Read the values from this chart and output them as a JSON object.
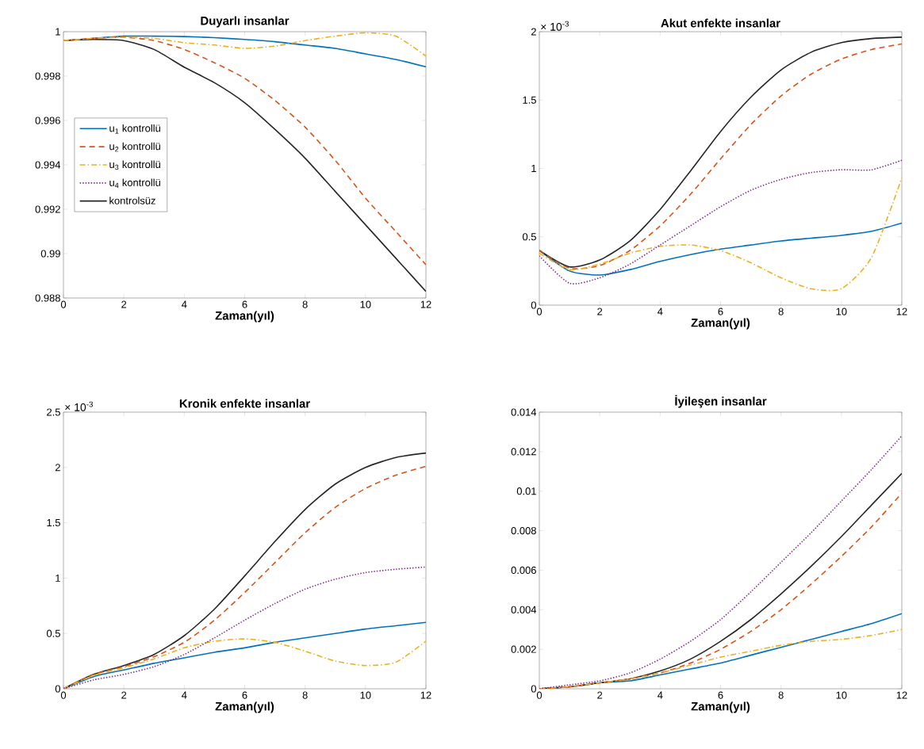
{
  "chart_data": [
    {
      "type": "line",
      "title": "Duyarlı insanlar",
      "xlabel": "Zaman(yıl)",
      "xlim": [
        0,
        12
      ],
      "xticks": [
        0,
        2,
        4,
        6,
        8,
        10,
        12
      ],
      "ylim": [
        0.988,
        1
      ],
      "yticks": [
        0.988,
        0.99,
        0.992,
        0.994,
        0.996,
        0.998,
        1
      ],
      "legend": "left",
      "x": [
        0,
        1,
        2,
        3,
        4,
        5,
        6,
        7,
        8,
        9,
        10,
        11,
        12
      ],
      "series": [
        {
          "name": "u$_{1}$ kontrollü",
          "color": "#0072bd",
          "line_style": "solid",
          "values": [
            0.9996,
            0.9997,
            0.9998,
            0.9998,
            0.99978,
            0.99973,
            0.99965,
            0.99955,
            0.9994,
            0.99925,
            0.999,
            0.99875,
            0.99842
          ]
        },
        {
          "name": "u$_{2}$ kontrollü",
          "color": "#d95319",
          "line_style": "dashed",
          "values": [
            0.9996,
            0.9997,
            0.99975,
            0.9996,
            0.9992,
            0.9986,
            0.9979,
            0.9969,
            0.9957,
            0.9942,
            0.9925,
            0.991,
            0.9895
          ]
        },
        {
          "name": "u$_{3}$ kontrollü",
          "color": "#edb120",
          "line_style": "dashdot",
          "values": [
            0.9996,
            0.9997,
            0.99975,
            0.9997,
            0.9995,
            0.9994,
            0.99925,
            0.99935,
            0.9996,
            0.9998,
            0.99995,
            0.9998,
            0.9989
          ]
        },
        {
          "name": "u$_{4}$ kontrollü",
          "color": "#7e2f8e",
          "line_style": "dotted",
          "values": [
            null,
            null,
            null,
            null,
            null,
            null,
            null,
            null,
            null,
            null,
            null,
            null,
            null
          ]
        },
        {
          "name": "kontrolsüz",
          "color": "#262626",
          "line_style": "solid",
          "values": [
            0.9996,
            0.99965,
            0.9996,
            0.9992,
            0.9984,
            0.9977,
            0.9968,
            0.9956,
            0.9943,
            0.9928,
            0.9913,
            0.9898,
            0.9883
          ]
        }
      ]
    },
    {
      "type": "line",
      "title": "Akut enfekte insanlar",
      "xlabel": "Zaman(yıl)",
      "xlim": [
        0,
        12
      ],
      "xticks": [
        0,
        2,
        4,
        6,
        8,
        10,
        12
      ],
      "ylim": [
        0,
        2
      ],
      "yticks": [
        0,
        0.5,
        1,
        1.5,
        2
      ],
      "annotations": [
        "× 10$^{-3}$"
      ],
      "x": [
        0,
        1,
        2,
        3,
        4,
        5,
        6,
        7,
        8,
        9,
        10,
        11,
        12
      ],
      "series": [
        {
          "color": "#0072bd",
          "line_style": "solid",
          "values": [
            0.4,
            0.25,
            0.22,
            0.26,
            0.32,
            0.37,
            0.41,
            0.44,
            0.47,
            0.49,
            0.51,
            0.54,
            0.6
          ]
        },
        {
          "color": "#d95319",
          "line_style": "dashed",
          "values": [
            0.4,
            0.27,
            0.29,
            0.4,
            0.58,
            0.81,
            1.07,
            1.32,
            1.53,
            1.69,
            1.8,
            1.87,
            1.91
          ]
        },
        {
          "color": "#edb120",
          "line_style": "dashdot",
          "values": [
            0.38,
            0.26,
            0.3,
            0.38,
            0.43,
            0.44,
            0.4,
            0.31,
            0.2,
            0.12,
            0.12,
            0.35,
            0.93
          ]
        },
        {
          "color": "#7e2f8e",
          "line_style": "dotted",
          "values": [
            0.36,
            0.16,
            0.2,
            0.3,
            0.44,
            0.58,
            0.72,
            0.84,
            0.92,
            0.97,
            0.99,
            0.99,
            1.06
          ]
        },
        {
          "color": "#262626",
          "line_style": "solid",
          "values": [
            0.4,
            0.28,
            0.33,
            0.47,
            0.7,
            0.98,
            1.27,
            1.52,
            1.72,
            1.85,
            1.92,
            1.95,
            1.96
          ]
        }
      ]
    },
    {
      "type": "line",
      "title": "Kronik enfekte insanlar",
      "xlabel": "Zaman(yıl)",
      "xlim": [
        0,
        12
      ],
      "xticks": [
        0,
        2,
        4,
        6,
        8,
        10,
        12
      ],
      "ylim": [
        0,
        2.5
      ],
      "yticks": [
        0,
        0.5,
        1,
        1.5,
        2,
        2.5
      ],
      "annotations": [
        "× 10$^{-3}$"
      ],
      "x": [
        0,
        1,
        2,
        3,
        4,
        5,
        6,
        7,
        8,
        9,
        10,
        11,
        12
      ],
      "series": [
        {
          "color": "#0072bd",
          "line_style": "solid",
          "values": [
            0,
            0.11,
            0.17,
            0.23,
            0.28,
            0.33,
            0.37,
            0.42,
            0.46,
            0.5,
            0.54,
            0.57,
            0.6
          ]
        },
        {
          "color": "#d95319",
          "line_style": "dashed",
          "values": [
            0,
            0.13,
            0.2,
            0.29,
            0.42,
            0.62,
            0.87,
            1.14,
            1.41,
            1.64,
            1.81,
            1.93,
            2.01
          ]
        },
        {
          "color": "#edb120",
          "line_style": "dashdot",
          "values": [
            0,
            0.12,
            0.19,
            0.27,
            0.37,
            0.43,
            0.45,
            0.42,
            0.34,
            0.25,
            0.21,
            0.24,
            0.43
          ]
        },
        {
          "color": "#7e2f8e",
          "line_style": "dotted",
          "values": [
            0,
            0.08,
            0.13,
            0.2,
            0.31,
            0.46,
            0.62,
            0.77,
            0.9,
            0.99,
            1.05,
            1.08,
            1.1
          ]
        },
        {
          "color": "#262626",
          "line_style": "solid",
          "values": [
            0,
            0.13,
            0.21,
            0.31,
            0.48,
            0.72,
            1.02,
            1.33,
            1.62,
            1.85,
            2.0,
            2.09,
            2.13
          ]
        }
      ]
    },
    {
      "type": "line",
      "title": "İyileşen insanlar",
      "xlabel": "Zaman(yıl)",
      "xlim": [
        0,
        12
      ],
      "xticks": [
        0,
        2,
        4,
        6,
        8,
        10,
        12
      ],
      "ylim": [
        0,
        0.014
      ],
      "yticks": [
        0,
        0.002,
        0.004,
        0.006,
        0.008,
        0.01,
        0.012,
        0.014
      ],
      "x": [
        0,
        1,
        2,
        3,
        4,
        5,
        6,
        7,
        8,
        9,
        10,
        11,
        12
      ],
      "series": [
        {
          "color": "#0072bd",
          "line_style": "solid",
          "values": [
            0,
            0.0001,
            0.0003,
            0.0004,
            0.0007,
            0.001,
            0.0013,
            0.0017,
            0.0021,
            0.0025,
            0.0029,
            0.0033,
            0.0038
          ]
        },
        {
          "color": "#d95319",
          "line_style": "dashed",
          "values": [
            0,
            0.0001,
            0.0003,
            0.0005,
            0.0008,
            0.0013,
            0.002,
            0.0029,
            0.004,
            0.0053,
            0.0067,
            0.0082,
            0.0099
          ]
        },
        {
          "color": "#edb120",
          "line_style": "dashdot",
          "values": [
            0,
            0.0001,
            0.0003,
            0.0005,
            0.0008,
            0.0012,
            0.0016,
            0.0019,
            0.0022,
            0.0024,
            0.0025,
            0.0027,
            0.003
          ]
        },
        {
          "color": "#7e2f8e",
          "line_style": "dotted",
          "values": [
            0,
            0.0002,
            0.0004,
            0.0008,
            0.0015,
            0.0024,
            0.0035,
            0.0049,
            0.0064,
            0.0079,
            0.0095,
            0.0111,
            0.0128
          ]
        },
        {
          "color": "#262626",
          "line_style": "solid",
          "values": [
            0,
            0.0001,
            0.0003,
            0.0005,
            0.0009,
            0.0015,
            0.0024,
            0.0035,
            0.0048,
            0.0062,
            0.0077,
            0.0093,
            0.0109
          ]
        }
      ]
    }
  ]
}
